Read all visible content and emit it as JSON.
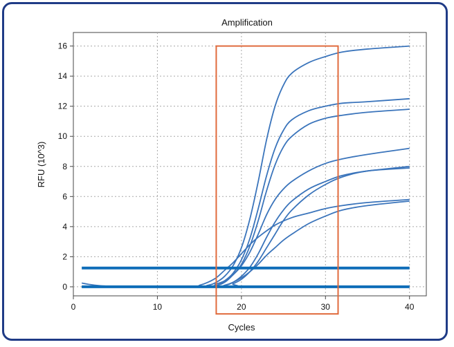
{
  "chart_data": {
    "type": "line",
    "title": "Amplification",
    "xlabel": "Cycles",
    "ylabel": "RFU (10^3)",
    "xlim": [
      0,
      42
    ],
    "ylim": [
      -0.6,
      16.9
    ],
    "x_ticks": [
      0,
      10,
      20,
      30,
      40
    ],
    "y_ticks": [
      0,
      2,
      4,
      6,
      8,
      10,
      12,
      14,
      16
    ],
    "grid": true,
    "series": [
      {
        "x": [
          1,
          14,
          16,
          17,
          18,
          19,
          20,
          21,
          22,
          23,
          24,
          25,
          26,
          28,
          30,
          32,
          35,
          40
        ],
        "values": [
          0,
          0,
          0.1,
          0.3,
          0.7,
          1.4,
          2.6,
          4.5,
          7.0,
          9.8,
          12.0,
          13.4,
          14.2,
          14.9,
          15.3,
          15.6,
          15.8,
          16.0
        ]
      },
      {
        "x": [
          1,
          15,
          17,
          18,
          19,
          20,
          21,
          22,
          23,
          24,
          25,
          26,
          28,
          30,
          32,
          35,
          40
        ],
        "values": [
          0,
          0,
          0.1,
          0.4,
          0.9,
          1.8,
          3.2,
          5.2,
          7.4,
          9.2,
          10.4,
          11.1,
          11.7,
          12.0,
          12.2,
          12.3,
          12.5
        ]
      },
      {
        "x": [
          1,
          15,
          17,
          18,
          19,
          20,
          21,
          22,
          23,
          24,
          25,
          26,
          28,
          30,
          32,
          35,
          40
        ],
        "values": [
          0,
          0,
          0.1,
          0.3,
          0.8,
          1.5,
          2.7,
          4.4,
          6.4,
          8.1,
          9.3,
          10.0,
          10.8,
          11.2,
          11.4,
          11.6,
          11.8
        ]
      },
      {
        "x": [
          1,
          15,
          17,
          18,
          19,
          20,
          21,
          22,
          23,
          24,
          25,
          26,
          28,
          30,
          32,
          35,
          40
        ],
        "values": [
          0,
          0,
          0.2,
          0.4,
          0.8,
          1.4,
          2.3,
          3.5,
          4.8,
          5.8,
          6.5,
          7.0,
          7.7,
          8.2,
          8.5,
          8.8,
          9.2
        ]
      },
      {
        "x": [
          1,
          16,
          18,
          19,
          20,
          21,
          22,
          23,
          24,
          25,
          26,
          28,
          30,
          32,
          35,
          40
        ],
        "values": [
          0,
          0,
          0.1,
          0.3,
          0.7,
          1.3,
          2.2,
          3.3,
          4.3,
          5.1,
          5.7,
          6.5,
          7.0,
          7.4,
          7.7,
          8.0
        ]
      },
      {
        "x": [
          1,
          18,
          19,
          20,
          21,
          22,
          23,
          24,
          25,
          26,
          28,
          30,
          32,
          35,
          40
        ],
        "values": [
          0,
          0,
          0.2,
          0.5,
          1.0,
          1.7,
          2.6,
          3.5,
          4.4,
          5.1,
          6.1,
          6.8,
          7.3,
          7.7,
          7.9
        ]
      },
      {
        "x": [
          1,
          14,
          15,
          16,
          17,
          18,
          19,
          20,
          21,
          22,
          24,
          26,
          28,
          30,
          32,
          35,
          40
        ],
        "values": [
          0,
          0,
          0.1,
          0.3,
          0.6,
          1.1,
          1.6,
          2.2,
          2.8,
          3.3,
          4.1,
          4.6,
          4.9,
          5.2,
          5.4,
          5.6,
          5.8
        ]
      },
      {
        "x": [
          1,
          17,
          18,
          19,
          20,
          21,
          22,
          23,
          24,
          25,
          26,
          28,
          30,
          32,
          35,
          40
        ],
        "values": [
          0,
          0,
          0.1,
          0.3,
          0.6,
          1.0,
          1.5,
          2.1,
          2.6,
          3.1,
          3.5,
          4.2,
          4.7,
          5.1,
          5.4,
          5.7
        ]
      },
      {
        "x": [
          1,
          2,
          3,
          4,
          5,
          6,
          10,
          20,
          30,
          40
        ],
        "values": [
          0.25,
          0.15,
          0.08,
          0.04,
          0.02,
          0,
          0,
          0,
          0,
          0
        ]
      }
    ],
    "threshold_lines": [
      {
        "y": 1.25,
        "x_range": [
          1,
          40
        ]
      },
      {
        "y": 0,
        "x_range": [
          1,
          40
        ]
      }
    ],
    "highlight_box": {
      "x_range": [
        17,
        31.5
      ],
      "y_range": [
        -1.8,
        16
      ]
    },
    "colors": {
      "series": "#3a74bb",
      "threshold": "#0e6db8",
      "highlight": "#e06a3c",
      "frame": "#1f3b86",
      "grid": "#a8a8a8"
    }
  }
}
